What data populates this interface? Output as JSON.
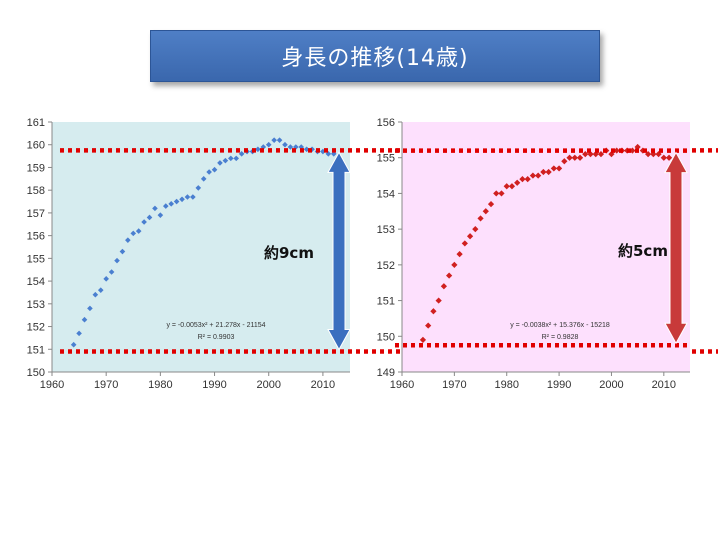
{
  "slide": {
    "title": "身長の推移(14歳)"
  },
  "colors": {
    "title_bg": "#4472c4",
    "left_plot_bg": "#d6ecef",
    "right_plot_bg": "#fde0fd",
    "left_marker": "#4a7fd0",
    "right_marker": "#d02020",
    "dotted_line": "#e00000",
    "left_arrow": "#3a6fbf",
    "right_arrow": "#c83a3a"
  },
  "chart_data": [
    {
      "type": "scatter",
      "title": "",
      "xlabel": "",
      "ylabel": "",
      "xlim": [
        1960,
        2015
      ],
      "ylim": [
        150,
        161
      ],
      "xticks": [
        "1960",
        "1970",
        "1980",
        "1990",
        "2000",
        "2010"
      ],
      "yticks": [
        "150",
        "151",
        "152",
        "153",
        "154",
        "155",
        "156",
        "157",
        "158",
        "159",
        "160",
        "161"
      ],
      "x": [
        1964,
        1965,
        1966,
        1967,
        1968,
        1969,
        1970,
        1971,
        1972,
        1973,
        1974,
        1975,
        1976,
        1977,
        1978,
        1979,
        1980,
        1981,
        1982,
        1983,
        1984,
        1985,
        1986,
        1987,
        1988,
        1989,
        1990,
        1991,
        1992,
        1993,
        1994,
        1995,
        1996,
        1997,
        1998,
        1999,
        2000,
        2001,
        2002,
        2003,
        2004,
        2005,
        2006,
        2007,
        2008,
        2009,
        2010,
        2011,
        2012
      ],
      "y": [
        151.2,
        151.7,
        152.3,
        152.8,
        153.4,
        153.6,
        154.1,
        154.4,
        154.9,
        155.3,
        155.8,
        156.1,
        156.2,
        156.6,
        156.8,
        157.2,
        156.9,
        157.3,
        157.4,
        157.5,
        157.6,
        157.7,
        157.7,
        158.1,
        158.5,
        158.8,
        158.9,
        159.2,
        159.3,
        159.4,
        159.4,
        159.6,
        159.7,
        159.7,
        159.8,
        159.9,
        160.0,
        160.2,
        160.2,
        160.0,
        159.9,
        159.9,
        159.9,
        159.8,
        159.8,
        159.7,
        159.7,
        159.6,
        159.6
      ],
      "trendline": {
        "type": "poly2",
        "a": -0.0053,
        "b": 21.278,
        "c": -21154,
        "x_start": 1964,
        "x_end": 2012
      },
      "equation": "y = -0.0053x² + 21.278x - 21154",
      "r2": "R² = 0.9903",
      "reference_lines": [
        159.75,
        150.9
      ],
      "annotation": "約9cm"
    },
    {
      "type": "scatter",
      "title": "",
      "xlabel": "",
      "ylabel": "",
      "xlim": [
        1960,
        2015
      ],
      "ylim": [
        149,
        156
      ],
      "xticks": [
        "1960",
        "1970",
        "1980",
        "1990",
        "2000",
        "2010"
      ],
      "yticks": [
        "149",
        "150",
        "151",
        "152",
        "153",
        "154",
        "155",
        "156"
      ],
      "x": [
        1964,
        1965,
        1966,
        1967,
        1968,
        1969,
        1970,
        1971,
        1972,
        1973,
        1974,
        1975,
        1976,
        1977,
        1978,
        1979,
        1980,
        1981,
        1982,
        1983,
        1984,
        1985,
        1986,
        1987,
        1988,
        1989,
        1990,
        1991,
        1992,
        1993,
        1994,
        1995,
        1996,
        1997,
        1998,
        1999,
        2000,
        2001,
        2002,
        2003,
        2004,
        2005,
        2006,
        2007,
        2008,
        2009,
        2010,
        2011,
        2012
      ],
      "y": [
        149.9,
        150.3,
        150.7,
        151.0,
        151.4,
        151.7,
        152.0,
        152.3,
        152.6,
        152.8,
        153.0,
        153.3,
        153.5,
        153.7,
        154.0,
        154.0,
        154.2,
        154.2,
        154.3,
        154.4,
        154.4,
        154.5,
        154.5,
        154.6,
        154.6,
        154.7,
        154.7,
        154.9,
        155.0,
        155.0,
        155.0,
        155.1,
        155.1,
        155.1,
        155.1,
        155.2,
        155.1,
        155.2,
        155.2,
        155.2,
        155.2,
        155.3,
        155.2,
        155.1,
        155.1,
        155.1,
        155.0,
        155.0,
        154.9
      ],
      "trendline": {
        "type": "poly2",
        "a": -0.0038,
        "b": 15.376,
        "c": -15218,
        "x_start": 1964,
        "x_end": 2012
      },
      "equation": "y = -0.0038x² + 15.376x - 15218",
      "r2": "R² = 0.9828",
      "reference_lines": [
        155.2,
        149.75
      ],
      "annotation": "約5cm"
    }
  ]
}
